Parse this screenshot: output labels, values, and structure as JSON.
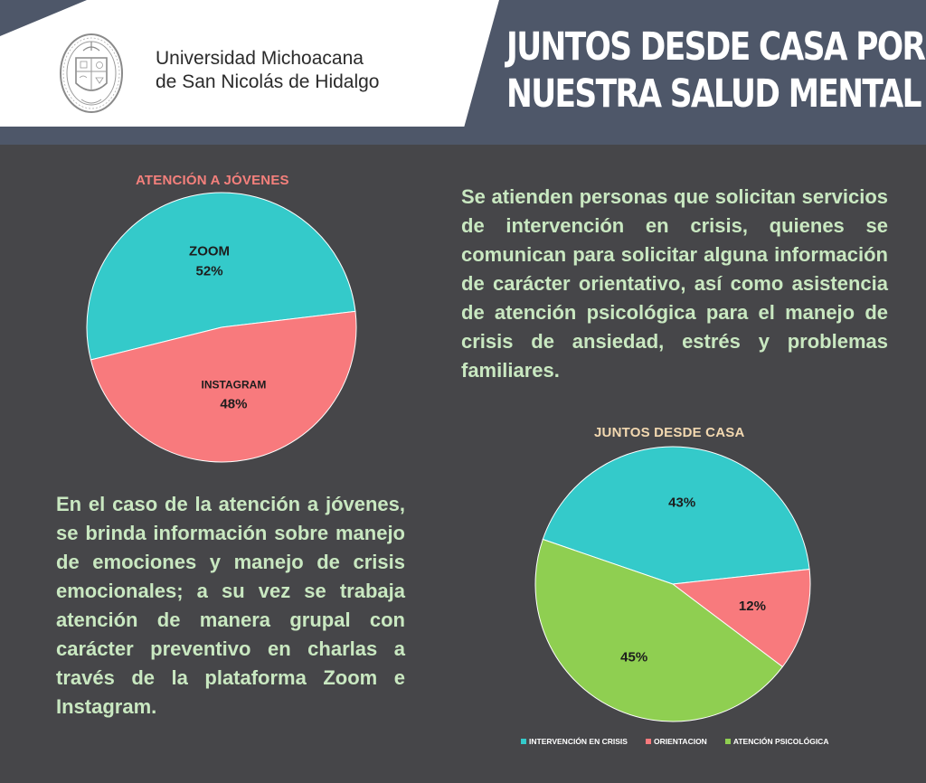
{
  "colors": {
    "header_band": "#4e5769",
    "background": "#464649",
    "teal": "#34caca",
    "coral": "#f87a7d",
    "green": "#8fcf51",
    "paragraph": "#c9e8c1"
  },
  "header": {
    "university_line1": "Universidad Michoacana",
    "university_line2": "de San Nicolás de Hidalgo",
    "title_line1": "JUNTOS DESDE CASA POR",
    "title_line2": "NUESTRA SALUD MENTAL"
  },
  "paragraphs": {
    "right": "Se atienden personas que solicitan servicios de intervención en crisis, quienes se comunican para solicitar alguna información de carácter orientativo, así como asistencia de atención psicológica para el manejo de crisis de ansiedad, estrés y problemas familiares.",
    "left": "En el caso de la atención a jóvenes, se brinda información sobre manejo de emociones y manejo de crisis emocionales; a su vez se trabaja atención de manera grupal con carácter preventivo en charlas a través de la plataforma Zoom e Instagram."
  },
  "chart_data": [
    {
      "type": "pie",
      "title": "ATENCIÓN A JÓVENES",
      "slices": [
        {
          "label": "ZOOM",
          "value": 52,
          "display": "52%",
          "color": "#34caca"
        },
        {
          "label": "INSTAGRAM",
          "value": 48,
          "display": "48%",
          "color": "#f87a7d"
        }
      ],
      "legend": "none"
    },
    {
      "type": "pie",
      "title": "JUNTOS DESDE CASA",
      "slices": [
        {
          "label": "INTERVENCIÓN EN CRISIS",
          "value": 43,
          "display": "43%",
          "color": "#34caca"
        },
        {
          "label": "ORIENTACION",
          "value": 12,
          "display": "12%",
          "color": "#f87a7d"
        },
        {
          "label": "ATENCIÓN PSICOLÓGICA",
          "value": 45,
          "display": "45%",
          "color": "#8fcf51"
        }
      ],
      "legend": "bottom"
    }
  ]
}
